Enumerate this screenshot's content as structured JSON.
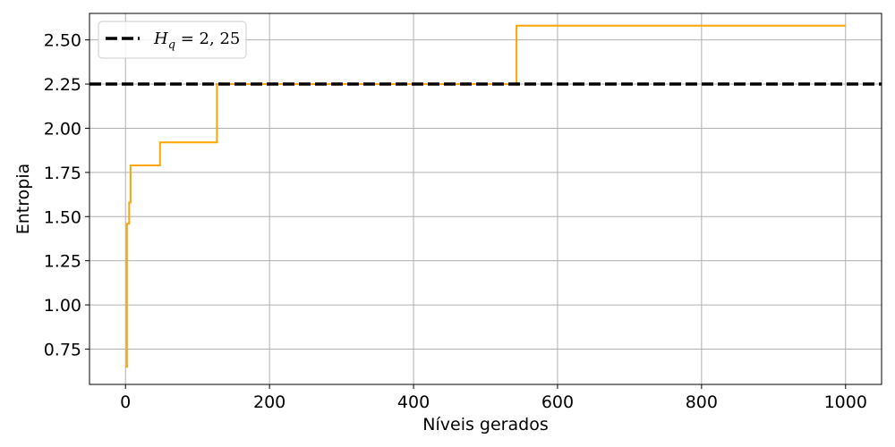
{
  "chart_data": {
    "type": "line",
    "title": "",
    "xlabel": "Níveis gerados",
    "ylabel": "Entropia",
    "xlim": [
      -50,
      1050
    ],
    "ylim": [
      0.55,
      2.65
    ],
    "xticks": [
      0,
      200,
      400,
      600,
      800,
      1000
    ],
    "yticks": [
      0.75,
      1.0,
      1.25,
      1.5,
      1.75,
      2.0,
      2.25,
      2.5
    ],
    "xtick_labels": [
      "0",
      "200",
      "400",
      "600",
      "800",
      "1000"
    ],
    "ytick_labels": [
      "0.75",
      "1.00",
      "1.25",
      "1.50",
      "1.75",
      "2.00",
      "2.25",
      "2.50"
    ],
    "grid": true,
    "legend_position": "top-left",
    "series": [
      {
        "style": "step",
        "color": "#FFA500",
        "x": [
          0,
          2,
          2,
          5,
          5,
          7,
          7,
          48,
          48,
          127,
          127,
          543,
          543,
          1000
        ],
        "y": [
          0.65,
          0.65,
          1.46,
          1.46,
          1.58,
          1.58,
          1.79,
          1.79,
          1.92,
          1.92,
          2.25,
          2.25,
          2.58,
          2.58
        ]
      }
    ],
    "reference_lines": [
      {
        "orientation": "horizontal",
        "y": 2.25,
        "label_base": "H",
        "label_sub": "q",
        "label_rest": " = 2, 25",
        "color": "#000000",
        "dashed": true
      }
    ]
  }
}
